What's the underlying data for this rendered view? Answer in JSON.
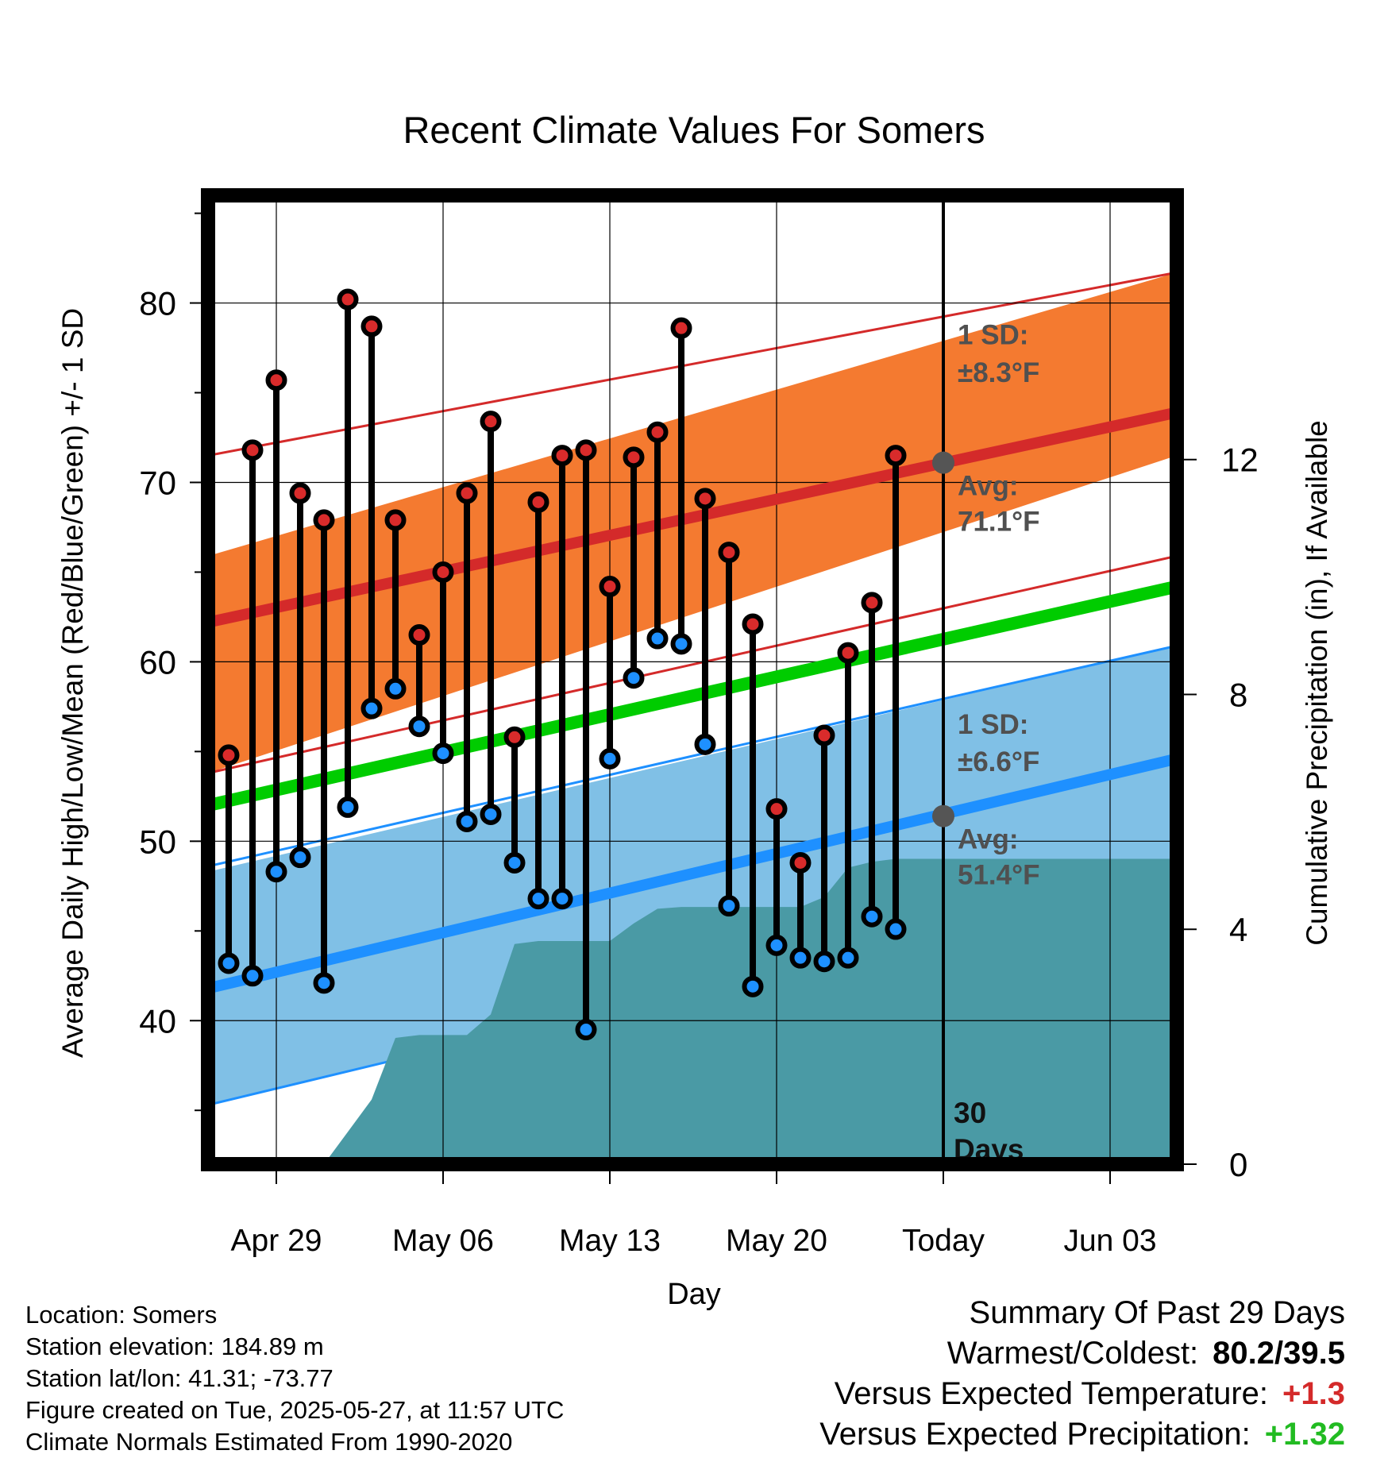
{
  "chart_data": {
    "type": "line",
    "title": "Recent Climate Values For Somers",
    "xlabel": "Day",
    "ylabel": "Average Daily High/Low/Mean (Red/Blue/Green) +/- 1 SD",
    "y2label": "Cumulative Precipitation (in), If Available",
    "ylim": [
      32,
      86
    ],
    "y2lim": [
      0,
      16.5
    ],
    "xlim": [
      -3.4,
      39.4
    ],
    "x_ticks": [
      {
        "day": 0,
        "label": "Apr 29"
      },
      {
        "day": 7,
        "label": "May 06"
      },
      {
        "day": 14,
        "label": "May 13"
      },
      {
        "day": 21,
        "label": "May 20"
      },
      {
        "day": 28,
        "label": "Today"
      },
      {
        "day": 35,
        "label": "Jun 03"
      }
    ],
    "y_ticks": [
      40,
      50,
      60,
      70,
      80
    ],
    "y2_ticks": [
      0,
      4,
      8,
      12
    ],
    "grid": true,
    "normals": {
      "high_mean": [
        62.2,
        73.9
      ],
      "high_sd_band": [
        [
          53.8,
          71.5
        ],
        [
          65.9,
          81.7
        ]
      ],
      "low_mean": [
        41.8,
        54.6
      ],
      "low_sd_band": [
        [
          35.3,
          48.6
        ],
        [
          48.3,
          60.9
        ]
      ],
      "daily_mean": [
        52.0,
        64.2
      ]
    },
    "series": [
      {
        "name": "High",
        "color": "#d92b2b",
        "values": [
          54.8,
          71.8,
          75.7,
          69.4,
          67.9,
          80.2,
          78.7,
          67.9,
          61.5,
          65.0,
          69.4,
          73.4,
          55.8,
          68.9,
          71.5,
          71.8,
          64.2,
          71.4,
          72.8,
          78.6,
          69.1,
          66.1,
          62.1,
          51.8,
          48.8,
          55.9,
          60.5,
          63.3,
          71.5
        ]
      },
      {
        "name": "Low",
        "color": "#1e90ff",
        "values": [
          43.2,
          42.5,
          48.3,
          49.1,
          42.1,
          51.9,
          57.4,
          58.5,
          56.4,
          54.9,
          51.1,
          51.5,
          48.8,
          46.8,
          46.8,
          39.5,
          54.6,
          59.1,
          61.3,
          61.0,
          55.4,
          46.4,
          41.9,
          44.2,
          43.5,
          43.3,
          43.5,
          45.8,
          45.1
        ]
      }
    ],
    "precipitation": {
      "days": [
        2,
        3,
        4,
        5,
        6,
        7,
        8,
        9,
        10,
        11,
        12,
        13,
        14,
        15,
        16,
        17,
        18,
        19,
        20,
        21,
        22,
        23,
        24,
        25,
        26,
        27,
        28,
        29,
        30,
        31,
        32,
        33,
        34,
        35,
        36,
        37,
        38,
        39
      ],
      "values": [
        0.0,
        0.55,
        1.1,
        2.15,
        2.2,
        2.2,
        2.2,
        2.55,
        3.75,
        3.8,
        3.8,
        3.8,
        3.8,
        4.1,
        4.35,
        4.38,
        4.38,
        4.38,
        4.38,
        4.38,
        4.38,
        4.55,
        5.05,
        5.15,
        5.2,
        5.2,
        5.2,
        5.2,
        5.2,
        5.2,
        5.2,
        5.2,
        5.2,
        5.2,
        5.2,
        5.2,
        5.2,
        5.2
      ]
    },
    "annotations": {
      "high_sd": {
        "label": "1 SD:",
        "value": "±8.3°F"
      },
      "high_avg": {
        "label": "Avg:",
        "value": "71.1°F",
        "value_num": 71.1
      },
      "low_sd": {
        "label": "1 SD:",
        "value": "±6.6°F"
      },
      "low_avg": {
        "label": "Avg:",
        "value": "51.4°F",
        "value_num": 51.4
      },
      "today_line": {
        "line1": "30",
        "line2": "Days"
      }
    },
    "colors": {
      "high_band": "#f47a30",
      "high_line": "#d42a2a",
      "low_band": "#80c0e6",
      "low_line": "#1e90ff",
      "mean_line": "#00cc00",
      "precip": "#4a9aa5"
    }
  },
  "footer": {
    "location": "Location: Somers",
    "elevation": "Station elevation: 184.89 m",
    "latlon": "Station lat/lon: 41.31; -73.77",
    "created": "Figure created on Tue, 2025-05-27, at 11:57 UTC",
    "normals": "Climate Normals Estimated From 1990-2020"
  },
  "summary": {
    "title": "Summary Of Past 29 Days",
    "warmest_label": "Warmest/Coldest:",
    "warmest_value": "80.2/39.5",
    "temp_label": "Versus Expected Temperature:",
    "temp_value": "+1.3",
    "temp_color": "#d42a2a",
    "precip_label": "Versus Expected Precipitation:",
    "precip_value": "+1.32",
    "precip_color": "#22bb22"
  }
}
